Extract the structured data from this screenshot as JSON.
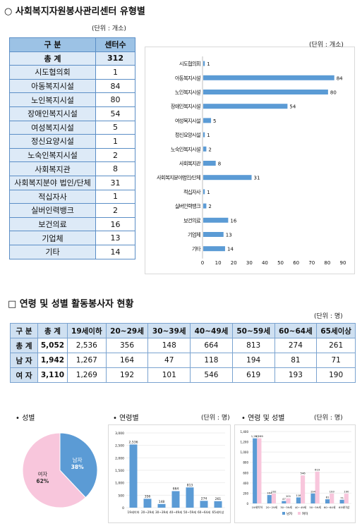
{
  "section1": {
    "title": "○ 사회복지자원봉사관리센터 유형별",
    "unit": "(단위 : 개소)",
    "table_headers": [
      "구 분",
      "센터수"
    ],
    "total_label": "총 계",
    "total_value": "312",
    "chart_unit": "(단위 : 개소)"
  },
  "section2": {
    "title": "□ 연령 및 성별 활동봉사자 현황",
    "unit": "(단위 : 명)",
    "headers": [
      "구 분",
      "총 계",
      "19세이하",
      "20~29세",
      "30~39세",
      "40~49세",
      "50~59세",
      "60~64세",
      "65세이상"
    ],
    "rows": [
      [
        "총 계",
        "5,052",
        "2,536",
        "356",
        "148",
        "664",
        "813",
        "274",
        "261"
      ],
      [
        "남 자",
        "1,942",
        "1,267",
        "164",
        "47",
        "118",
        "194",
        "81",
        "71"
      ],
      [
        "여 자",
        "3,110",
        "1,269",
        "192",
        "101",
        "546",
        "619",
        "193",
        "190"
      ]
    ]
  },
  "section3": {
    "gender_title": "• 성별",
    "age_title": "• 연령별",
    "age_unit": "(단위 : 명)",
    "agegender_title": "• 연령 및 성별",
    "agegender_unit": "(단위 : 명)"
  },
  "colors": {
    "blue": "#5b9bd5",
    "pink": "#f8c6dc",
    "header": "#9cc2e5",
    "light": "#ddeaf7"
  },
  "chart_data": [
    {
      "type": "bar",
      "orientation": "horizontal",
      "categories": [
        "시도협의회",
        "아동복지시설",
        "노인복지시설",
        "장애인복지시설",
        "여성복지시설",
        "정신요양시설",
        "노숙인복지시설",
        "사회복지관",
        "사회복지분야법인/단체",
        "적십자사",
        "실버인력뱅크",
        "보건의료",
        "기업체",
        "기타"
      ],
      "table_categories": [
        "시도협의회",
        "아동복지시설",
        "노인복지시설",
        "장애인복지시설",
        "여성복지시설",
        "정신요양시설",
        "노숙인복지시설",
        "사회복지관",
        "사회복지분야 법인/단체",
        "적십자사",
        "실버인력뱅크",
        "보건의료",
        "기업체",
        "기타"
      ],
      "values": [
        1,
        84,
        80,
        54,
        5,
        1,
        2,
        8,
        31,
        1,
        2,
        16,
        13,
        14
      ],
      "xlim": [
        0,
        90
      ],
      "xticks": [
        "0",
        "10",
        "20",
        "30",
        "40",
        "50",
        "60",
        "70",
        "80",
        "90"
      ],
      "grid": false
    },
    {
      "type": "pie",
      "labels": [
        "남자",
        "여자"
      ],
      "values": [
        38,
        62
      ],
      "value_labels": [
        "38%",
        "62%"
      ],
      "colors": [
        "#5b9bd5",
        "#f8c6dc"
      ]
    },
    {
      "type": "bar",
      "categories": [
        "19세이하",
        "20~29세",
        "30~39세",
        "40~49세",
        "50~59세",
        "60~64세",
        "65세이상"
      ],
      "values": [
        2536,
        356,
        148,
        664,
        813,
        274,
        261
      ],
      "value_labels": [
        "2,536",
        "356",
        "148",
        "664",
        "813",
        "274",
        "261"
      ],
      "ylim": [
        0,
        3000
      ],
      "yticks": [
        "0",
        "500",
        "1,000",
        "1,500",
        "2,000",
        "2,500",
        "3,000"
      ]
    },
    {
      "type": "bar",
      "categories": [
        "19세이하",
        "20~29세",
        "30~39세",
        "40~49세",
        "50~59세",
        "60~64세",
        "65세이상"
      ],
      "series": [
        {
          "name": "남자",
          "values": [
            1267,
            164,
            47,
            118,
            194,
            81,
            71
          ],
          "value_labels": [
            "1,267",
            "164",
            "47",
            "118",
            "194",
            "81",
            "71"
          ]
        },
        {
          "name": "여자",
          "values": [
            1269,
            192,
            101,
            546,
            619,
            193,
            190
          ],
          "value_labels": [
            "1,269",
            "192",
            "101",
            "546",
            "619",
            "193",
            "190"
          ]
        }
      ],
      "ylim": [
        0,
        1400
      ],
      "yticks": [
        "0",
        "200",
        "400",
        "600",
        "800",
        "1,000",
        "1,200",
        "1,400"
      ],
      "legend": "bottom"
    }
  ]
}
